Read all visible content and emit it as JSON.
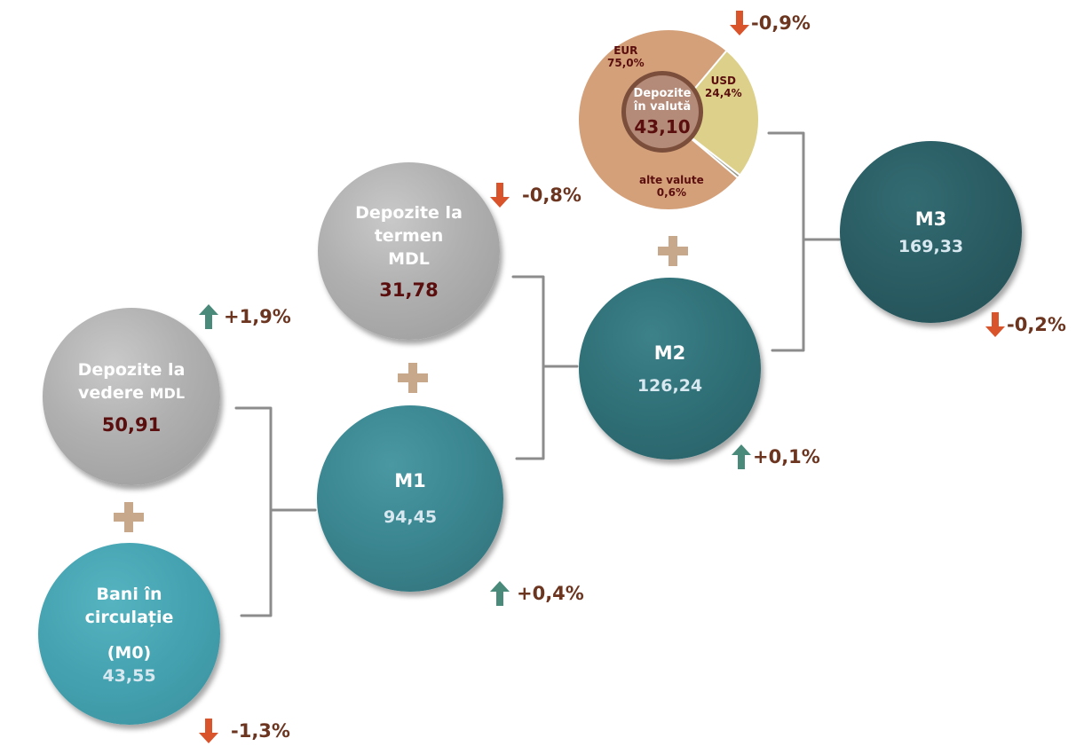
{
  "nodes": {
    "depozite_vedere": {
      "title_line1": "Depozite la",
      "title_line2a": "vedere",
      "title_line2b": "MDL",
      "value": "50,91",
      "change": "+1,9%"
    },
    "bani_circulatie": {
      "title_line1": "Bani în",
      "title_line2": "circulație",
      "title_line3": "(M0)",
      "value": "43,55",
      "change": "-1,3%"
    },
    "depozite_termen": {
      "title_line1": "Depozite la",
      "title_line2": "termen",
      "title_line3": "MDL",
      "value": "31,78",
      "change": "-0,8%"
    },
    "m1": {
      "label": "M1",
      "value": "94,45",
      "change": "+0,4%"
    },
    "m2": {
      "label": "M2",
      "value": "126,24",
      "change": "+0,1%"
    },
    "m3": {
      "label": "M3",
      "value": "169,33",
      "change": "-0,2%"
    },
    "depozite_valuta": {
      "title_line1": "Depozite",
      "title_line2": "în valută",
      "value": "43,10",
      "change": "-0,9%"
    }
  },
  "pie": {
    "slices": [
      {
        "name": "EUR",
        "value": 75.0,
        "label": "75,0%",
        "color": "#d4a07a"
      },
      {
        "name": "USD",
        "value": 24.4,
        "label": "24,4%",
        "color": "#dcd08a"
      },
      {
        "name": "alte valute",
        "value": 0.6,
        "label": "0,6%",
        "color": "#9a9a8a"
      }
    ]
  },
  "colors": {
    "up_arrow": "#4a8a7a",
    "down_arrow": "#d9532b",
    "plus": "#c8a88a",
    "bracket": "#8c8c8c"
  }
}
